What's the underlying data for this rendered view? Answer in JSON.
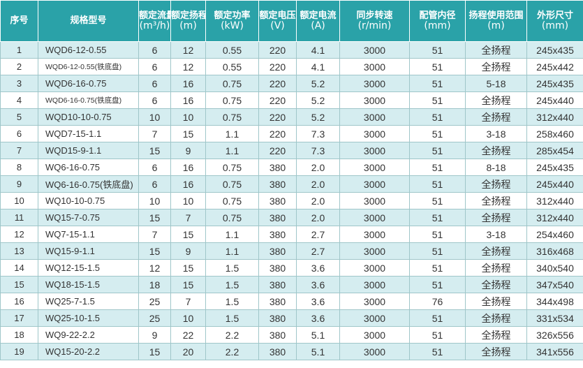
{
  "header": {
    "no": "序号",
    "model": "规格型号",
    "flow": "额定流量",
    "flow_unit": "(m³/h)",
    "head": "额定扬程",
    "head_unit": "(m)",
    "power": "额定功率",
    "power_unit": "(kW)",
    "voltage": "额定电压",
    "voltage_unit": "(V)",
    "current": "额定电流",
    "current_unit": "(A)",
    "speed": "同步转速",
    "speed_unit": "(r/min)",
    "pipe": "配管内径",
    "pipe_unit": "(mm)",
    "range": "扬程使用范围",
    "range_unit": "(m)",
    "size": "外形尺寸",
    "size_unit": "(mm)"
  },
  "rows": [
    {
      "no": "1",
      "model": "WQD6-12-0.55",
      "flow": "6",
      "head": "12",
      "power": "0.55",
      "voltage": "220",
      "current": "4.1",
      "speed": "3000",
      "pipe": "51",
      "range": "全扬程",
      "size": "245x435"
    },
    {
      "no": "2",
      "model": "WQD6-12-0.55(铁底盘)",
      "flow": "6",
      "head": "12",
      "power": "0.55",
      "voltage": "220",
      "current": "4.1",
      "speed": "3000",
      "pipe": "51",
      "range": "全扬程",
      "size": "245x442"
    },
    {
      "no": "3",
      "model": "WQD6-16-0.75",
      "flow": "6",
      "head": "16",
      "power": "0.75",
      "voltage": "220",
      "current": "5.2",
      "speed": "3000",
      "pipe": "51",
      "range": "5-18",
      "size": "245x435"
    },
    {
      "no": "4",
      "model": "WQD6-16-0.75(铁底盘)",
      "flow": "6",
      "head": "16",
      "power": "0.75",
      "voltage": "220",
      "current": "5.2",
      "speed": "3000",
      "pipe": "51",
      "range": "全扬程",
      "size": "245x440"
    },
    {
      "no": "5",
      "model": "WQD10-10-0.75",
      "flow": "10",
      "head": "10",
      "power": "0.75",
      "voltage": "220",
      "current": "5.2",
      "speed": "3000",
      "pipe": "51",
      "range": "全扬程",
      "size": "312x440"
    },
    {
      "no": "6",
      "model": "WQD7-15-1.1",
      "flow": "7",
      "head": "15",
      "power": "1.1",
      "voltage": "220",
      "current": "7.3",
      "speed": "3000",
      "pipe": "51",
      "range": "3-18",
      "size": "258x460"
    },
    {
      "no": "7",
      "model": "WQD15-9-1.1",
      "flow": "15",
      "head": "9",
      "power": "1.1",
      "voltage": "220",
      "current": "7.3",
      "speed": "3000",
      "pipe": "51",
      "range": "全扬程",
      "size": "285x454"
    },
    {
      "no": "8",
      "model": "WQ6-16-0.75",
      "flow": "6",
      "head": "16",
      "power": "0.75",
      "voltage": "380",
      "current": "2.0",
      "speed": "3000",
      "pipe": "51",
      "range": "8-18",
      "size": "245x435"
    },
    {
      "no": "9",
      "model": "WQ6-16-0.75(铁底盘)",
      "flow": "6",
      "head": "16",
      "power": "0.75",
      "voltage": "380",
      "current": "2.0",
      "speed": "3000",
      "pipe": "51",
      "range": "全扬程",
      "size": "245x440"
    },
    {
      "no": "10",
      "model": "WQ10-10-0.75",
      "flow": "10",
      "head": "10",
      "power": "0.75",
      "voltage": "380",
      "current": "2.0",
      "speed": "3000",
      "pipe": "51",
      "range": "全扬程",
      "size": "312x440"
    },
    {
      "no": "11",
      "model": "WQ15-7-0.75",
      "flow": "15",
      "head": "7",
      "power": "0.75",
      "voltage": "380",
      "current": "2.0",
      "speed": "3000",
      "pipe": "51",
      "range": "全扬程",
      "size": "312x440"
    },
    {
      "no": "12",
      "model": "WQ7-15-1.1",
      "flow": "7",
      "head": "15",
      "power": "1.1",
      "voltage": "380",
      "current": "2.7",
      "speed": "3000",
      "pipe": "51",
      "range": "3-18",
      "size": "254x460"
    },
    {
      "no": "13",
      "model": "WQ15-9-1.1",
      "flow": "15",
      "head": "9",
      "power": "1.1",
      "voltage": "380",
      "current": "2.7",
      "speed": "3000",
      "pipe": "51",
      "range": "全扬程",
      "size": "316x468"
    },
    {
      "no": "14",
      "model": "WQ12-15-1.5",
      "flow": "12",
      "head": "15",
      "power": "1.5",
      "voltage": "380",
      "current": "3.6",
      "speed": "3000",
      "pipe": "51",
      "range": "全扬程",
      "size": "340x540"
    },
    {
      "no": "15",
      "model": "WQ18-15-1.5",
      "flow": "18",
      "head": "15",
      "power": "1.5",
      "voltage": "380",
      "current": "3.6",
      "speed": "3000",
      "pipe": "51",
      "range": "全扬程",
      "size": "347x540"
    },
    {
      "no": "16",
      "model": "WQ25-7-1.5",
      "flow": "25",
      "head": "7",
      "power": "1.5",
      "voltage": "380",
      "current": "3.6",
      "speed": "3000",
      "pipe": "76",
      "range": "全扬程",
      "size": "344x498"
    },
    {
      "no": "17",
      "model": "WQ25-10-1.5",
      "flow": "25",
      "head": "10",
      "power": "1.5",
      "voltage": "380",
      "current": "3.6",
      "speed": "3000",
      "pipe": "51",
      "range": "全扬程",
      "size": "331x534"
    },
    {
      "no": "18",
      "model": "WQ9-22-2.2",
      "flow": "9",
      "head": "22",
      "power": "2.2",
      "voltage": "380",
      "current": "5.1",
      "speed": "3000",
      "pipe": "51",
      "range": "全扬程",
      "size": "326x556"
    },
    {
      "no": "19",
      "model": "WQ15-20-2.2",
      "flow": "15",
      "head": "20",
      "power": "2.2",
      "voltage": "380",
      "current": "5.1",
      "speed": "3000",
      "pipe": "51",
      "range": "全扬程",
      "size": "341x556"
    }
  ]
}
